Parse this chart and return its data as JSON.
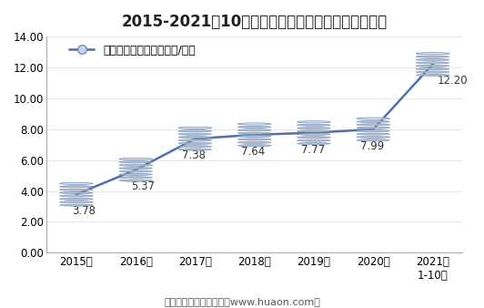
{
  "title": "2015-2021年10月大连商品交易所焦煤期货成交均价",
  "legend_label": "焦煤期货成交均价（万元/手）",
  "footer": "制图：华经产业研究院（www.huaon.com）",
  "x_labels": [
    "2015年",
    "2016年",
    "2017年",
    "2018年",
    "2019年",
    "2020年",
    "2021年\n1-10月"
  ],
  "x_values": [
    0,
    1,
    2,
    3,
    4,
    5,
    6
  ],
  "y_values": [
    3.78,
    5.37,
    7.38,
    7.64,
    7.77,
    7.99,
    12.2
  ],
  "data_labels": [
    "3.78",
    "5.37",
    "7.38",
    "7.64",
    "7.77",
    "7.99",
    "12.20"
  ],
  "label_offsets_x": [
    -0.08,
    -0.08,
    -0.22,
    -0.22,
    -0.22,
    -0.22,
    0.08
  ],
  "label_offsets_y": [
    -0.7,
    -0.7,
    -0.7,
    -0.7,
    -0.7,
    -0.7,
    -0.7
  ],
  "ylim": [
    0,
    14.0
  ],
  "yticks": [
    0.0,
    2.0,
    4.0,
    6.0,
    8.0,
    10.0,
    12.0,
    14.0
  ],
  "line_color": "#4F6FAF",
  "cyl_face_color": "#C8D4E8",
  "cyl_top_color": "#E0E8F4",
  "cyl_edge_color": "#7090B8",
  "background_color": "#ffffff",
  "title_fontsize": 12,
  "tick_fontsize": 8.5,
  "label_fontsize": 8.5,
  "legend_fontsize": 9,
  "footer_fontsize": 8
}
